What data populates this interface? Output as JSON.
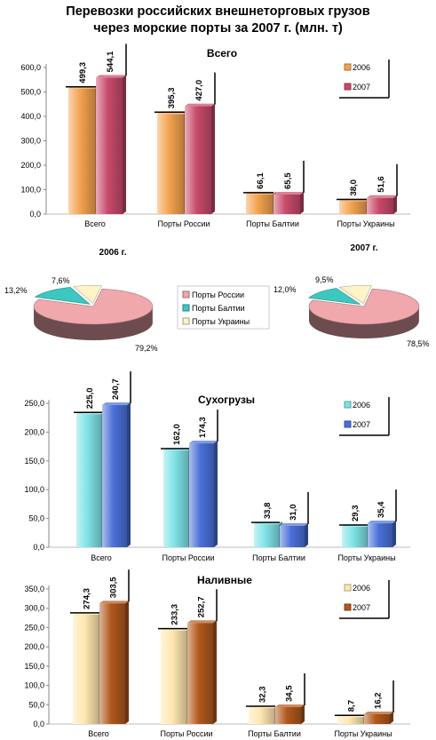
{
  "title_line1": "Перевозки российских внешнеторговых грузов",
  "title_line2": "через морские порты за 2007 г.  (млн. т)",
  "chart_data": [
    {
      "type": "bar",
      "title": "Всего",
      "categories": [
        "Всего",
        "Порты России",
        "Порты Балтии",
        "Порты Украины"
      ],
      "series": [
        {
          "name": "2006",
          "values": [
            499.3,
            395.3,
            66.1,
            38.0
          ],
          "labels": [
            "499,3",
            "395,3",
            "66,1",
            "38,0"
          ],
          "color": "#f3a24f"
        },
        {
          "name": "2007",
          "values": [
            544.1,
            427.0,
            65.5,
            51.6
          ],
          "labels": [
            "544,1",
            "427,0",
            "65,5",
            "51,6"
          ],
          "color": "#c84a6a"
        }
      ],
      "ylim": [
        0,
        600
      ],
      "yticks": [
        "0,0",
        "100,0",
        "200,0",
        "300,0",
        "400,0",
        "500,0",
        "600,0"
      ],
      "legend": "top-right"
    },
    {
      "type": "pie",
      "title": "2006 г.",
      "slices": [
        {
          "name": "Порты России",
          "value": 79.2,
          "label": "79,2%",
          "color": "#f0a8ad"
        },
        {
          "name": "Порты Балтии",
          "value": 13.2,
          "label": "13,2%",
          "color": "#3cc8c0"
        },
        {
          "name": "Порты Украины",
          "value": 7.6,
          "label": "7,6%",
          "color": "#fff4c8"
        }
      ],
      "legend": "right"
    },
    {
      "type": "pie",
      "title": "2007 г.",
      "slices": [
        {
          "name": "Порты России",
          "value": 78.5,
          "label": "78,5%",
          "color": "#f0a8ad"
        },
        {
          "name": "Порты Балтии",
          "value": 12.0,
          "label": "12,0%",
          "color": "#3cc8c0"
        },
        {
          "name": "Порты Украины",
          "value": 9.5,
          "label": "9,5%",
          "color": "#fff4c8"
        }
      ]
    },
    {
      "type": "bar",
      "title": "Сухогрузы",
      "categories": [
        "Всего",
        "Порты России",
        "Порты Балтии",
        "Порты Украины"
      ],
      "series": [
        {
          "name": "2006",
          "values": [
            225.0,
            162.0,
            33.8,
            29.3
          ],
          "labels": [
            "225,0",
            "162,0",
            "33,8",
            "29,3"
          ],
          "color": "#7fe3e6"
        },
        {
          "name": "2007",
          "values": [
            240.7,
            174.3,
            31.0,
            35.4
          ],
          "labels": [
            "240,7",
            "174,3",
            "31,0",
            "35,4"
          ],
          "color": "#4a70d8"
        }
      ],
      "ylim": [
        0,
        250
      ],
      "yticks": [
        "0,0",
        "50,0",
        "100,0",
        "150,0",
        "200,0",
        "250,0"
      ],
      "legend": "top-right"
    },
    {
      "type": "bar",
      "title": "Наливные",
      "categories": [
        "Всего",
        "Порты России",
        "Порты Балтии",
        "Порты Украины"
      ],
      "series": [
        {
          "name": "2006",
          "values": [
            274.3,
            233.3,
            32.3,
            8.7
          ],
          "labels": [
            "274,3",
            "233,3",
            "32,3",
            "8,7"
          ],
          "color": "#ffe7b0"
        },
        {
          "name": "2007",
          "values": [
            303.5,
            252.7,
            34.5,
            16.2
          ],
          "labels": [
            "303,5",
            "252,7",
            "34,5",
            "16,2"
          ],
          "color": "#b0581c"
        }
      ],
      "ylim": [
        0,
        350
      ],
      "yticks": [
        "0,0",
        "50,0",
        "100,0",
        "150,0",
        "200,0",
        "250,0",
        "300,0",
        "350,0"
      ],
      "legend": "top-right"
    }
  ]
}
